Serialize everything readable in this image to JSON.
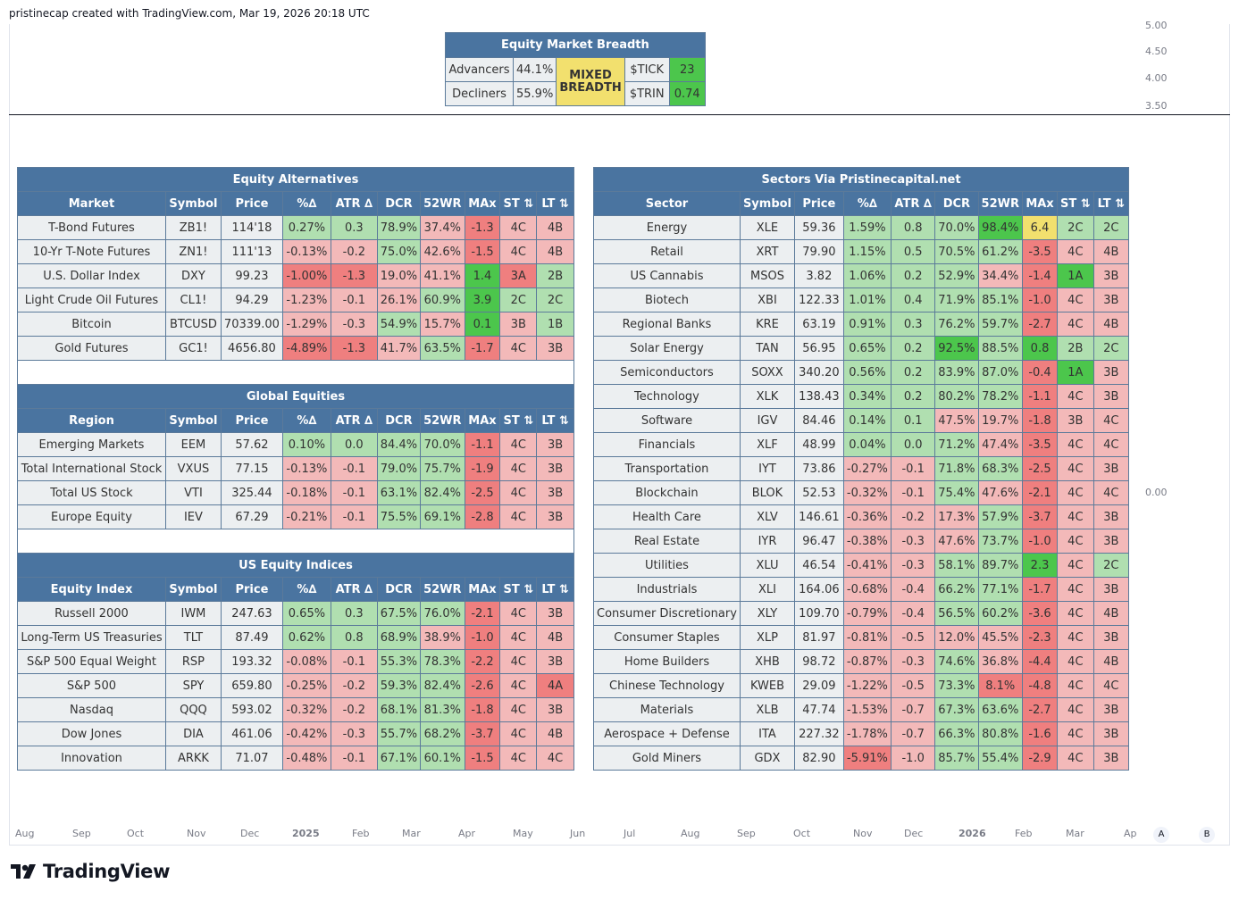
{
  "caption": "pristinecap created with TradingView.com, Mar 19, 2026 20:18 UTC",
  "brand": "TradingView",
  "y_axis": [
    "5.00",
    "4.50",
    "4.00",
    "3.50",
    "0.00"
  ],
  "x_axis": [
    "Aug",
    "Sep",
    "Oct",
    "Nov",
    "Dec",
    "2025",
    "Feb",
    "Mar",
    "Apr",
    "May",
    "Jun",
    "Jul",
    "Aug",
    "Sep",
    "Oct",
    "Nov",
    "Dec",
    "2026",
    "Feb",
    "Mar",
    "Ap"
  ],
  "corner_buttons": [
    "A",
    "B"
  ],
  "breadth": {
    "title": "Equity Market Breadth",
    "adv_label": "Advancers",
    "adv_value": "44.1%",
    "dec_label": "Decliners",
    "dec_value": "55.9%",
    "status_line1": "MIXED",
    "status_line2": "BREADTH",
    "tick_label": "$TICK",
    "tick_value": "23",
    "trin_label": "$TRIN",
    "trin_value": "0.74"
  },
  "left_headers": [
    "Symbol",
    "Price",
    "%∆",
    "ATR ∆",
    "DCR",
    "52WR",
    "MAx",
    "ST ⇅",
    "LT ⇅"
  ],
  "alt": {
    "title": "Equity Alternatives",
    "first_header": "Market",
    "rows": [
      [
        "T-Bond Futures",
        "ZB1!",
        "114'18",
        "0.27%",
        "0.3",
        "78.9%",
        "37.4%",
        "-1.3",
        "4C",
        "4B"
      ],
      [
        "10-Yr T-Note Futures",
        "ZN1!",
        "111'13",
        "-0.13%",
        "-0.2",
        "75.0%",
        "42.6%",
        "-1.5",
        "4C",
        "4B"
      ],
      [
        "U.S. Dollar Index",
        "DXY",
        "99.23",
        "-1.00%",
        "-1.3",
        "19.0%",
        "41.1%",
        "1.4",
        "3A",
        "2B"
      ],
      [
        "Light Crude Oil Futures",
        "CL1!",
        "94.29",
        "-1.23%",
        "-0.1",
        "26.1%",
        "60.9%",
        "3.9",
        "2C",
        "2C"
      ],
      [
        "Bitcoin",
        "BTCUSD",
        "70339.00",
        "-1.29%",
        "-0.3",
        "54.9%",
        "15.7%",
        "0.1",
        "3B",
        "1B"
      ],
      [
        "Gold Futures",
        "GC1!",
        "4656.80",
        "-4.89%",
        "-1.3",
        "41.7%",
        "63.5%",
        "-1.7",
        "4C",
        "3B"
      ]
    ],
    "colors": [
      [
        "plain",
        "plain",
        "plain",
        "g",
        "g",
        "g",
        "r",
        "R",
        "r",
        "r"
      ],
      [
        "plain",
        "plain",
        "plain",
        "r",
        "r",
        "g",
        "r",
        "R",
        "r",
        "r"
      ],
      [
        "plain",
        "plain",
        "plain",
        "R",
        "R",
        "r",
        "r",
        "G",
        "R",
        "g"
      ],
      [
        "plain",
        "plain",
        "plain",
        "r",
        "r",
        "r",
        "g",
        "G",
        "g",
        "g"
      ],
      [
        "plain",
        "plain",
        "plain",
        "r",
        "r",
        "g",
        "r",
        "G",
        "r",
        "g"
      ],
      [
        "plain",
        "plain",
        "plain",
        "R",
        "R",
        "r",
        "g",
        "R",
        "r",
        "r"
      ]
    ]
  },
  "glob": {
    "title": "Global Equities",
    "first_header": "Region",
    "rows": [
      [
        "Emerging Markets",
        "EEM",
        "57.62",
        "0.10%",
        "0.0",
        "84.4%",
        "70.0%",
        "-1.1",
        "4C",
        "3B"
      ],
      [
        "Total International Stock",
        "VXUS",
        "77.15",
        "-0.13%",
        "-0.1",
        "79.0%",
        "75.7%",
        "-1.9",
        "4C",
        "3B"
      ],
      [
        "Total US Stock",
        "VTI",
        "325.44",
        "-0.18%",
        "-0.1",
        "63.1%",
        "82.4%",
        "-2.5",
        "4C",
        "3B"
      ],
      [
        "Europe Equity",
        "IEV",
        "67.29",
        "-0.21%",
        "-0.1",
        "75.5%",
        "69.1%",
        "-2.8",
        "4C",
        "3B"
      ]
    ],
    "colors": [
      [
        "plain",
        "plain",
        "plain",
        "g",
        "g",
        "g",
        "g",
        "R",
        "r",
        "r"
      ],
      [
        "plain",
        "plain",
        "plain",
        "r",
        "r",
        "g",
        "g",
        "R",
        "r",
        "r"
      ],
      [
        "plain",
        "plain",
        "plain",
        "r",
        "r",
        "g",
        "g",
        "R",
        "r",
        "r"
      ],
      [
        "plain",
        "plain",
        "plain",
        "r",
        "r",
        "g",
        "g",
        "R",
        "r",
        "r"
      ]
    ]
  },
  "usidx": {
    "title": "US Equity Indices",
    "first_header": "Equity Index",
    "rows": [
      [
        "Russell 2000",
        "IWM",
        "247.63",
        "0.65%",
        "0.3",
        "67.5%",
        "76.0%",
        "-2.1",
        "4C",
        "3B"
      ],
      [
        "Long-Term US Treasuries",
        "TLT",
        "87.49",
        "0.62%",
        "0.8",
        "68.9%",
        "38.9%",
        "-1.0",
        "4C",
        "4B"
      ],
      [
        "S&P 500 Equal Weight",
        "RSP",
        "193.32",
        "-0.08%",
        "-0.1",
        "55.3%",
        "78.3%",
        "-2.2",
        "4C",
        "3B"
      ],
      [
        "S&P 500",
        "SPY",
        "659.80",
        "-0.25%",
        "-0.2",
        "59.3%",
        "82.4%",
        "-2.6",
        "4C",
        "4A"
      ],
      [
        "Nasdaq",
        "QQQ",
        "593.02",
        "-0.32%",
        "-0.2",
        "68.1%",
        "81.3%",
        "-1.8",
        "4C",
        "3B"
      ],
      [
        "Dow Jones",
        "DIA",
        "461.06",
        "-0.42%",
        "-0.3",
        "55.7%",
        "68.2%",
        "-3.7",
        "4C",
        "4B"
      ],
      [
        "Innovation",
        "ARKK",
        "71.07",
        "-0.48%",
        "-0.1",
        "67.1%",
        "60.1%",
        "-1.5",
        "4C",
        "4C"
      ]
    ],
    "colors": [
      [
        "plain",
        "plain",
        "plain",
        "g",
        "g",
        "g",
        "g",
        "R",
        "r",
        "r"
      ],
      [
        "plain",
        "plain",
        "plain",
        "g",
        "g",
        "g",
        "r",
        "R",
        "r",
        "r"
      ],
      [
        "plain",
        "plain",
        "plain",
        "r",
        "r",
        "g",
        "g",
        "R",
        "r",
        "r"
      ],
      [
        "plain",
        "plain",
        "plain",
        "r",
        "r",
        "g",
        "g",
        "R",
        "r",
        "R"
      ],
      [
        "plain",
        "plain",
        "plain",
        "r",
        "r",
        "g",
        "g",
        "R",
        "r",
        "r"
      ],
      [
        "plain",
        "plain",
        "plain",
        "r",
        "r",
        "g",
        "g",
        "R",
        "r",
        "r"
      ],
      [
        "plain",
        "plain",
        "plain",
        "r",
        "r",
        "g",
        "g",
        "R",
        "r",
        "r"
      ]
    ]
  },
  "sectors": {
    "title": "Sectors Via Pristinecapital.net",
    "first_header": "Sector",
    "rows": [
      [
        "Energy",
        "XLE",
        "59.36",
        "1.59%",
        "0.8",
        "70.0%",
        "98.4%",
        "6.4",
        "2C",
        "2C"
      ],
      [
        "Retail",
        "XRT",
        "79.90",
        "1.15%",
        "0.5",
        "70.5%",
        "61.2%",
        "-3.5",
        "4C",
        "4B"
      ],
      [
        "US Cannabis",
        "MSOS",
        "3.82",
        "1.06%",
        "0.2",
        "52.9%",
        "34.4%",
        "-1.4",
        "1A",
        "3B"
      ],
      [
        "Biotech",
        "XBI",
        "122.33",
        "1.01%",
        "0.4",
        "71.9%",
        "85.1%",
        "-1.0",
        "4C",
        "3B"
      ],
      [
        "Regional Banks",
        "KRE",
        "63.19",
        "0.91%",
        "0.3",
        "76.2%",
        "59.7%",
        "-2.7",
        "4C",
        "4B"
      ],
      [
        "Solar Energy",
        "TAN",
        "56.95",
        "0.65%",
        "0.2",
        "92.5%",
        "88.5%",
        "0.8",
        "2B",
        "2C"
      ],
      [
        "Semiconductors",
        "SOXX",
        "340.20",
        "0.56%",
        "0.2",
        "83.9%",
        "87.0%",
        "-0.4",
        "1A",
        "3B"
      ],
      [
        "Technology",
        "XLK",
        "138.43",
        "0.34%",
        "0.2",
        "80.2%",
        "78.2%",
        "-1.1",
        "4C",
        "3B"
      ],
      [
        "Software",
        "IGV",
        "84.46",
        "0.14%",
        "0.1",
        "47.5%",
        "19.7%",
        "-1.8",
        "3B",
        "4C"
      ],
      [
        "Financials",
        "XLF",
        "48.99",
        "0.04%",
        "0.0",
        "71.2%",
        "47.4%",
        "-3.5",
        "4C",
        "4C"
      ],
      [
        "Transportation",
        "IYT",
        "73.86",
        "-0.27%",
        "-0.1",
        "71.8%",
        "68.3%",
        "-2.5",
        "4C",
        "3B"
      ],
      [
        "Blockchain",
        "BLOK",
        "52.53",
        "-0.32%",
        "-0.1",
        "75.4%",
        "47.6%",
        "-2.1",
        "4C",
        "4C"
      ],
      [
        "Health Care",
        "XLV",
        "146.61",
        "-0.36%",
        "-0.2",
        "17.3%",
        "57.9%",
        "-3.7",
        "4C",
        "3B"
      ],
      [
        "Real Estate",
        "IYR",
        "96.47",
        "-0.38%",
        "-0.3",
        "47.6%",
        "73.7%",
        "-1.0",
        "4C",
        "3B"
      ],
      [
        "Utilities",
        "XLU",
        "46.54",
        "-0.41%",
        "-0.3",
        "58.1%",
        "89.7%",
        "2.3",
        "4C",
        "2C"
      ],
      [
        "Industrials",
        "XLI",
        "164.06",
        "-0.68%",
        "-0.4",
        "66.2%",
        "77.1%",
        "-1.7",
        "4C",
        "3B"
      ],
      [
        "Consumer Discretionary",
        "XLY",
        "109.70",
        "-0.79%",
        "-0.4",
        "56.5%",
        "60.2%",
        "-3.6",
        "4C",
        "4B"
      ],
      [
        "Consumer Staples",
        "XLP",
        "81.97",
        "-0.81%",
        "-0.5",
        "12.0%",
        "45.5%",
        "-2.3",
        "4C",
        "3B"
      ],
      [
        "Home Builders",
        "XHB",
        "98.72",
        "-0.87%",
        "-0.3",
        "74.6%",
        "36.8%",
        "-4.4",
        "4C",
        "4B"
      ],
      [
        "Chinese Technology",
        "KWEB",
        "29.09",
        "-1.22%",
        "-0.5",
        "73.3%",
        "8.1%",
        "-4.8",
        "4C",
        "4C"
      ],
      [
        "Materials",
        "XLB",
        "47.74",
        "-1.53%",
        "-0.7",
        "67.3%",
        "63.6%",
        "-2.7",
        "4C",
        "3B"
      ],
      [
        "Aerospace + Defense",
        "ITA",
        "227.32",
        "-1.78%",
        "-0.7",
        "66.3%",
        "80.8%",
        "-1.6",
        "4C",
        "3B"
      ],
      [
        "Gold Miners",
        "GDX",
        "82.90",
        "-5.91%",
        "-1.0",
        "85.7%",
        "55.4%",
        "-2.9",
        "4C",
        "3B"
      ]
    ],
    "colors": [
      [
        "plain",
        "plain",
        "plain",
        "g",
        "g",
        "g",
        "G",
        "y",
        "g",
        "g"
      ],
      [
        "plain",
        "plain",
        "plain",
        "g",
        "g",
        "g",
        "g",
        "R",
        "r",
        "r"
      ],
      [
        "plain",
        "plain",
        "plain",
        "g",
        "g",
        "g",
        "r",
        "R",
        "G",
        "r"
      ],
      [
        "plain",
        "plain",
        "plain",
        "g",
        "g",
        "g",
        "g",
        "R",
        "r",
        "r"
      ],
      [
        "plain",
        "plain",
        "plain",
        "g",
        "g",
        "g",
        "g",
        "R",
        "r",
        "r"
      ],
      [
        "plain",
        "plain",
        "plain",
        "g",
        "g",
        "G",
        "g",
        "G",
        "g",
        "g"
      ],
      [
        "plain",
        "plain",
        "plain",
        "g",
        "g",
        "g",
        "g",
        "R",
        "G",
        "r"
      ],
      [
        "plain",
        "plain",
        "plain",
        "g",
        "g",
        "g",
        "g",
        "R",
        "r",
        "r"
      ],
      [
        "plain",
        "plain",
        "plain",
        "g",
        "g",
        "r",
        "r",
        "R",
        "r",
        "r"
      ],
      [
        "plain",
        "plain",
        "plain",
        "g",
        "g",
        "g",
        "r",
        "R",
        "r",
        "r"
      ],
      [
        "plain",
        "plain",
        "plain",
        "r",
        "r",
        "g",
        "g",
        "R",
        "r",
        "r"
      ],
      [
        "plain",
        "plain",
        "plain",
        "r",
        "r",
        "g",
        "r",
        "R",
        "r",
        "r"
      ],
      [
        "plain",
        "plain",
        "plain",
        "r",
        "r",
        "r",
        "g",
        "R",
        "r",
        "r"
      ],
      [
        "plain",
        "plain",
        "plain",
        "r",
        "r",
        "r",
        "g",
        "R",
        "r",
        "r"
      ],
      [
        "plain",
        "plain",
        "plain",
        "r",
        "r",
        "g",
        "g",
        "G",
        "r",
        "g"
      ],
      [
        "plain",
        "plain",
        "plain",
        "r",
        "r",
        "g",
        "g",
        "R",
        "r",
        "r"
      ],
      [
        "plain",
        "plain",
        "plain",
        "r",
        "r",
        "g",
        "g",
        "R",
        "r",
        "r"
      ],
      [
        "plain",
        "plain",
        "plain",
        "r",
        "r",
        "r",
        "r",
        "R",
        "r",
        "r"
      ],
      [
        "plain",
        "plain",
        "plain",
        "r",
        "r",
        "g",
        "r",
        "R",
        "r",
        "r"
      ],
      [
        "plain",
        "plain",
        "plain",
        "r",
        "r",
        "g",
        "R",
        "R",
        "r",
        "r"
      ],
      [
        "plain",
        "plain",
        "plain",
        "r",
        "r",
        "g",
        "g",
        "R",
        "r",
        "r"
      ],
      [
        "plain",
        "plain",
        "plain",
        "r",
        "r",
        "g",
        "g",
        "R",
        "r",
        "r"
      ],
      [
        "plain",
        "plain",
        "plain",
        "R",
        "r",
        "g",
        "g",
        "R",
        "r",
        "r"
      ]
    ]
  }
}
